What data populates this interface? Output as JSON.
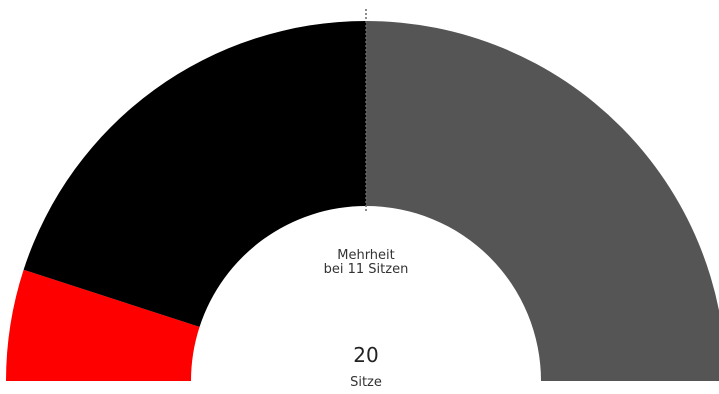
{
  "chart_data": {
    "type": "pie",
    "variant": "half-donut (parliament seat distribution)",
    "total": 20,
    "total_label": "Sitze",
    "majority": 11,
    "majority_label_line1": "Mehrheit",
    "majority_label_line2": "bei 11 Sitzen",
    "series": [
      {
        "values": [
          2
        ],
        "color": "#ff0000"
      },
      {
        "values": [
          8
        ],
        "color": "#000000"
      },
      {
        "values": [
          10
        ],
        "color": "#555555"
      }
    ]
  }
}
